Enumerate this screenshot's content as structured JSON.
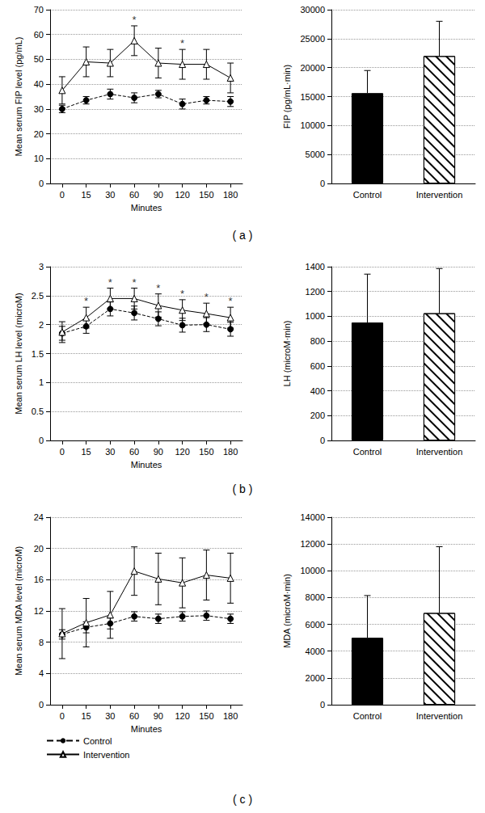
{
  "chart_data": [
    {
      "type": "line",
      "y_label": "Mean serum FIP level (pg/mL)",
      "x_label": "Minutes",
      "categories": [
        "0",
        "15",
        "30",
        "60",
        "90",
        "120",
        "150",
        "180"
      ],
      "series": [
        {
          "name": "Control",
          "color": "#000000",
          "marker": "circle",
          "line_style": "dashed",
          "values": [
            30,
            33.5,
            36,
            34.5,
            36,
            32,
            33.5,
            33
          ],
          "errors": [
            1.5,
            1.5,
            2,
            2,
            1.5,
            2,
            1.5,
            2
          ]
        },
        {
          "name": "Intervention",
          "color": "#000000",
          "marker": "triangle",
          "line_style": "solid",
          "values": [
            37.5,
            49,
            48.5,
            57.5,
            48.5,
            48,
            48,
            42.5
          ],
          "errors": [
            5.5,
            6,
            5.5,
            6,
            6,
            6,
            6,
            6
          ]
        }
      ],
      "annotations": [
        {
          "text": "*",
          "category": "60",
          "series": "Intervention"
        },
        {
          "text": "*",
          "category": "120",
          "series": "Intervention"
        },
        {
          "text": "( a )"
        }
      ],
      "ylim": [
        0,
        70
      ],
      "yticks": [
        0,
        10,
        20,
        30,
        40,
        50,
        60,
        70
      ],
      "grid": true
    },
    {
      "type": "bar",
      "y_label": "FIP (pg/mL·min)",
      "categories": [
        "Control",
        "Intervention"
      ],
      "values": [
        15600,
        22000
      ],
      "errors": [
        3900,
        6000
      ],
      "colors": [
        "#000000",
        "#ffffff"
      ],
      "ylim": [
        0,
        30000
      ],
      "yticks": [
        0,
        5000,
        10000,
        15000,
        20000,
        25000,
        30000
      ],
      "grid": true
    },
    {
      "type": "line",
      "y_label": "Mean serum LH level (microM)",
      "x_label": "Minutes",
      "categories": [
        "0",
        "15",
        "30",
        "60",
        "90",
        "120",
        "150",
        "180"
      ],
      "series": [
        {
          "name": "Control",
          "color": "#000000",
          "marker": "circle",
          "line_style": "dashed",
          "values": [
            1.85,
            1.97,
            2.27,
            2.2,
            2.1,
            1.99,
            2.0,
            1.92
          ],
          "errors": [
            0.12,
            0.12,
            0.12,
            0.12,
            0.12,
            0.12,
            0.12,
            0.12
          ]
        },
        {
          "name": "Intervention",
          "color": "#000000",
          "marker": "triangle",
          "line_style": "solid",
          "values": [
            1.87,
            2.12,
            2.45,
            2.45,
            2.33,
            2.25,
            2.19,
            2.12
          ],
          "errors": [
            0.18,
            0.18,
            0.18,
            0.18,
            0.2,
            0.18,
            0.18,
            0.18
          ]
        }
      ],
      "annotations": [
        {
          "text": "*",
          "category": "15",
          "series": "Intervention"
        },
        {
          "text": "*",
          "category": "30",
          "series": "Intervention"
        },
        {
          "text": "*",
          "category": "60",
          "series": "Intervention"
        },
        {
          "text": "*",
          "category": "90",
          "series": "Intervention"
        },
        {
          "text": "*",
          "category": "120",
          "series": "Intervention"
        },
        {
          "text": "*",
          "category": "150",
          "series": "Intervention"
        },
        {
          "text": "*",
          "category": "180",
          "series": "Intervention"
        },
        {
          "text": "( b )"
        }
      ],
      "ylim": [
        0,
        3
      ],
      "yticks": [
        0,
        0.5,
        1,
        1.5,
        2,
        2.5,
        3
      ],
      "grid": true
    },
    {
      "type": "bar",
      "y_label": "LH (microM·min)",
      "categories": [
        "Control",
        "Intervention"
      ],
      "values": [
        950,
        1025
      ],
      "errors": [
        390,
        360
      ],
      "colors": [
        "#000000",
        "#ffffff"
      ],
      "ylim": [
        0,
        1400
      ],
      "yticks": [
        0,
        200,
        400,
        600,
        800,
        1000,
        1200,
        1400
      ],
      "grid": true
    },
    {
      "type": "line",
      "y_label": "Mean serum MDA level (microM)",
      "x_label": "Minutes",
      "categories": [
        "0",
        "15",
        "30",
        "60",
        "90",
        "120",
        "150",
        "180"
      ],
      "series": [
        {
          "name": "Control",
          "color": "#000000",
          "marker": "circle",
          "line_style": "dashed",
          "values": [
            9,
            9.9,
            10.4,
            11.3,
            11.0,
            11.3,
            11.4,
            11.0
          ],
          "errors": [
            0.6,
            0.7,
            0.7,
            0.6,
            0.6,
            0.6,
            0.6,
            0.6
          ]
        },
        {
          "name": "Intervention",
          "color": "#000000",
          "marker": "triangle",
          "line_style": "solid",
          "values": [
            9.1,
            10.5,
            11.5,
            17.1,
            16.1,
            15.6,
            16.6,
            16.2
          ],
          "errors": [
            3.2,
            3.1,
            3.0,
            3.1,
            3.3,
            3.2,
            3.2,
            3.2
          ]
        }
      ],
      "annotations": [
        {
          "text": "( c )"
        }
      ],
      "legend": "bottom left",
      "ylim": [
        0,
        24
      ],
      "yticks": [
        0,
        4,
        8,
        12,
        16,
        20,
        24
      ],
      "grid": true
    },
    {
      "type": "bar",
      "y_label": "MDA (microM·min)",
      "categories": [
        "Control",
        "Intervention"
      ],
      "values": [
        5000,
        6850
      ],
      "errors": [
        3150,
        4950
      ],
      "colors": [
        "#000000",
        "#ffffff"
      ],
      "ylim": [
        0,
        14000
      ],
      "yticks": [
        0,
        2000,
        4000,
        6000,
        8000,
        10000,
        12000,
        14000
      ],
      "grid": true
    }
  ]
}
